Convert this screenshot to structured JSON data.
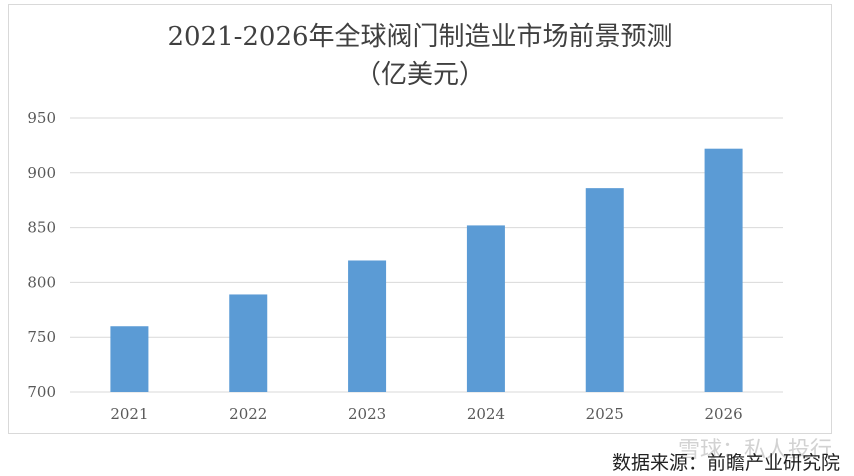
{
  "chart_data": {
    "type": "bar",
    "title_line1": "2021-2026年全球阀门制造业市场前景预测",
    "title_line2": "（亿美元）",
    "categories": [
      "2021",
      "2022",
      "2023",
      "2024",
      "2025",
      "2026"
    ],
    "values": [
      760,
      789,
      820,
      852,
      886,
      922
    ],
    "ylim": [
      700,
      950
    ],
    "yticks": [
      700,
      750,
      800,
      850,
      900,
      950
    ],
    "ytick_labels": [
      "700",
      "750",
      "800",
      "850",
      "900",
      "950"
    ],
    "bar_color": "#5b9bd5",
    "grid": true,
    "legend": "none"
  },
  "source": "数据来源：前瞻产业研究院",
  "watermark": "雪球：私人投行"
}
